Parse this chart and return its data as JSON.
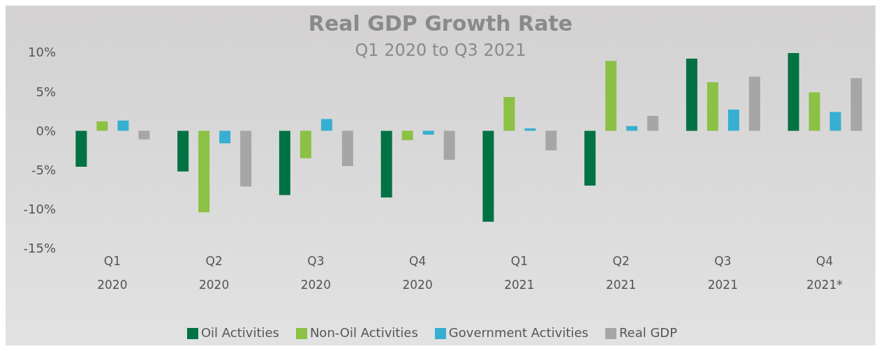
{
  "chart_data": {
    "type": "bar",
    "title": "Real GDP Growth Rate",
    "subtitle": "Q1 2020 to Q3 2021",
    "categories": [
      "Q1\n2020",
      "Q2\n2020",
      "Q3\n2020",
      "Q4\n2020",
      "Q1\n2021",
      "Q2\n2021",
      "Q3\n2021",
      "Q4\n2021*"
    ],
    "series": [
      {
        "name": "Oil Activities",
        "color": "#007243",
        "values": [
          -4.6,
          -5.2,
          -8.2,
          -8.5,
          -11.6,
          -7.0,
          9.2,
          9.9
        ]
      },
      {
        "name": "Non-Oil Activities",
        "color": "#8bc145",
        "values": [
          1.2,
          -10.4,
          -3.5,
          -1.2,
          4.3,
          8.9,
          6.2,
          4.9
        ]
      },
      {
        "name": "Government Activities",
        "color": "#36afd0",
        "values": [
          1.3,
          -1.6,
          1.5,
          -0.5,
          0.3,
          0.6,
          2.7,
          2.4
        ]
      },
      {
        "name": "Real GDP",
        "color": "#a6a6a6",
        "values": [
          -1.1,
          -7.1,
          -4.5,
          -3.7,
          -2.5,
          1.9,
          6.9,
          6.7
        ]
      }
    ],
    "ylim": [
      -15,
      10
    ],
    "yticks": [
      {
        "value": -15,
        "label": "-15%"
      },
      {
        "value": -10,
        "label": "-10%"
      },
      {
        "value": -5,
        "label": "-5%"
      },
      {
        "value": 0,
        "label": "0%"
      },
      {
        "value": 5,
        "label": "5%"
      },
      {
        "value": 10,
        "label": "10%"
      }
    ],
    "grid": false,
    "legend": "bottom"
  }
}
